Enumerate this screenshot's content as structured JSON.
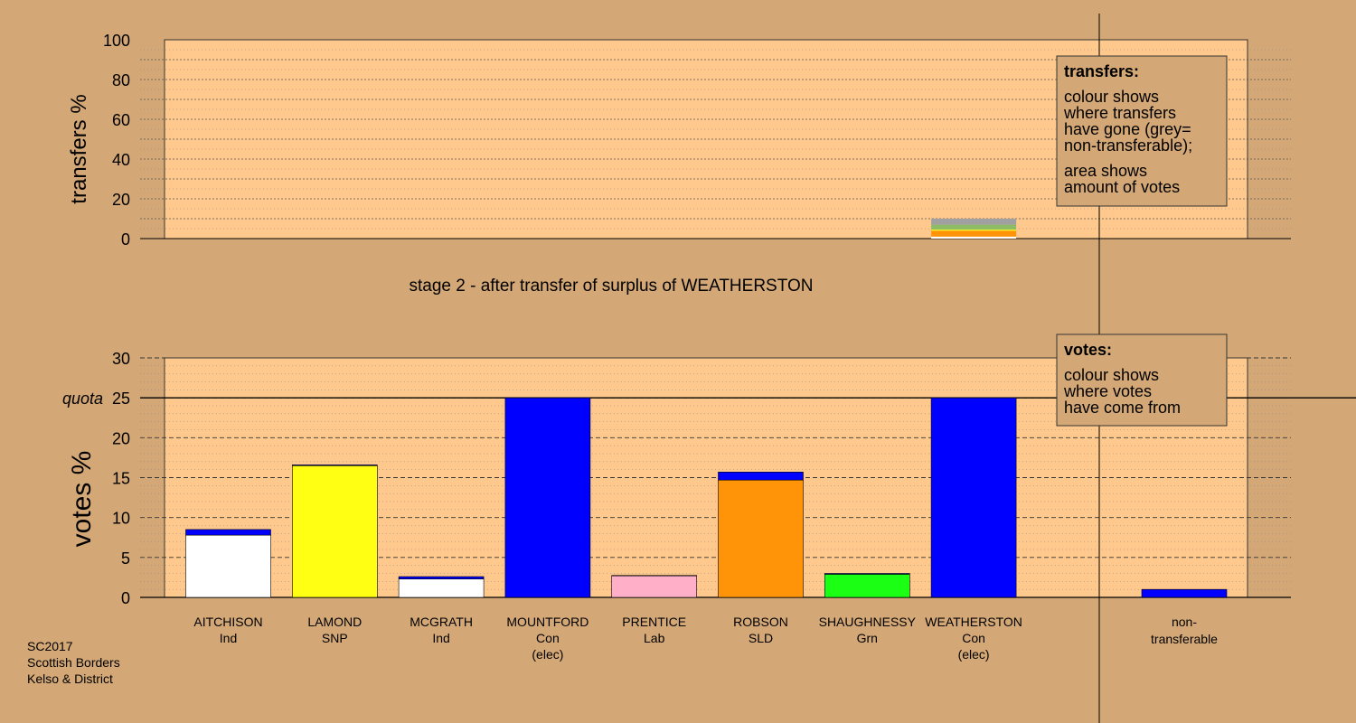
{
  "chart_data": {
    "type": "bar",
    "stage_label": "stage 2 - after transfer of surplus of WEATHERSTON",
    "footer": [
      "SC2017",
      "Scottish Borders",
      "Kelso & District"
    ],
    "transfers": {
      "ylabel": "transfers %",
      "ylim": [
        0,
        100
      ],
      "ticks": [
        "0",
        "20",
        "40",
        "60",
        "80",
        "100"
      ],
      "column": "WEATHERSTON",
      "segments": [
        {
          "label": "AITCHISON",
          "value": 1.0,
          "color": "#ffffff"
        },
        {
          "label": "ROBSON",
          "value": 3.0,
          "color": "#ff9408"
        },
        {
          "label": "LAMOND",
          "value": 0.5,
          "color": "#ffff14"
        },
        {
          "label": "SHAUGHNESSY",
          "value": 2.5,
          "color": "#8dbb66"
        },
        {
          "label": "non-transferable",
          "value": 3.0,
          "color": "#a0a0a0"
        }
      ],
      "legend": {
        "title": "transfers:",
        "lines": [
          "colour shows",
          "where transfers",
          "have gone (grey=",
          "non-transferable);",
          "area shows",
          "amount of votes"
        ]
      }
    },
    "votes": {
      "ylabel": "votes %",
      "ylim": [
        0,
        30
      ],
      "ticks": [
        "0",
        "5",
        "10",
        "15",
        "20",
        "25",
        "30"
      ],
      "quota": 25,
      "quota_label": "quota",
      "categories": [
        {
          "name": "AITCHISON",
          "party": "Ind",
          "elected": "",
          "base": 7.8,
          "base_color": "#ffffff",
          "added": 0.7
        },
        {
          "name": "LAMOND",
          "party": "SNP",
          "elected": "",
          "base": 16.5,
          "base_color": "#ffff14",
          "added": 0.1
        },
        {
          "name": "MCGRATH",
          "party": "Ind",
          "elected": "",
          "base": 2.3,
          "base_color": "#ffffff",
          "added": 0.3
        },
        {
          "name": "MOUNTFORD",
          "party": "Con",
          "elected": "(elec)",
          "base": 25.0,
          "base_color": "#0000ff",
          "added": 0
        },
        {
          "name": "PRENTICE",
          "party": "Lab",
          "elected": "",
          "base": 2.7,
          "base_color": "#ffb0c8",
          "added": 0.05
        },
        {
          "name": "ROBSON",
          "party": "SLD",
          "elected": "",
          "base": 14.7,
          "base_color": "#ff9408",
          "added": 1.0
        },
        {
          "name": "SHAUGHNESSY",
          "party": "Grn",
          "elected": "",
          "base": 2.9,
          "base_color": "#1aff14",
          "added": 0.1
        },
        {
          "name": "WEATHERSTON",
          "party": "Con",
          "elected": "(elec)",
          "base": 25.0,
          "base_color": "#0000ff",
          "added": 0
        }
      ],
      "nontransferable": {
        "name": "non-",
        "name2": "transferable",
        "value": 1.0,
        "color": "#0000ff"
      },
      "transfer_color": "#0000ff",
      "legend": {
        "title": "votes:",
        "lines": [
          "colour shows",
          "where votes",
          "have come from"
        ]
      }
    }
  }
}
